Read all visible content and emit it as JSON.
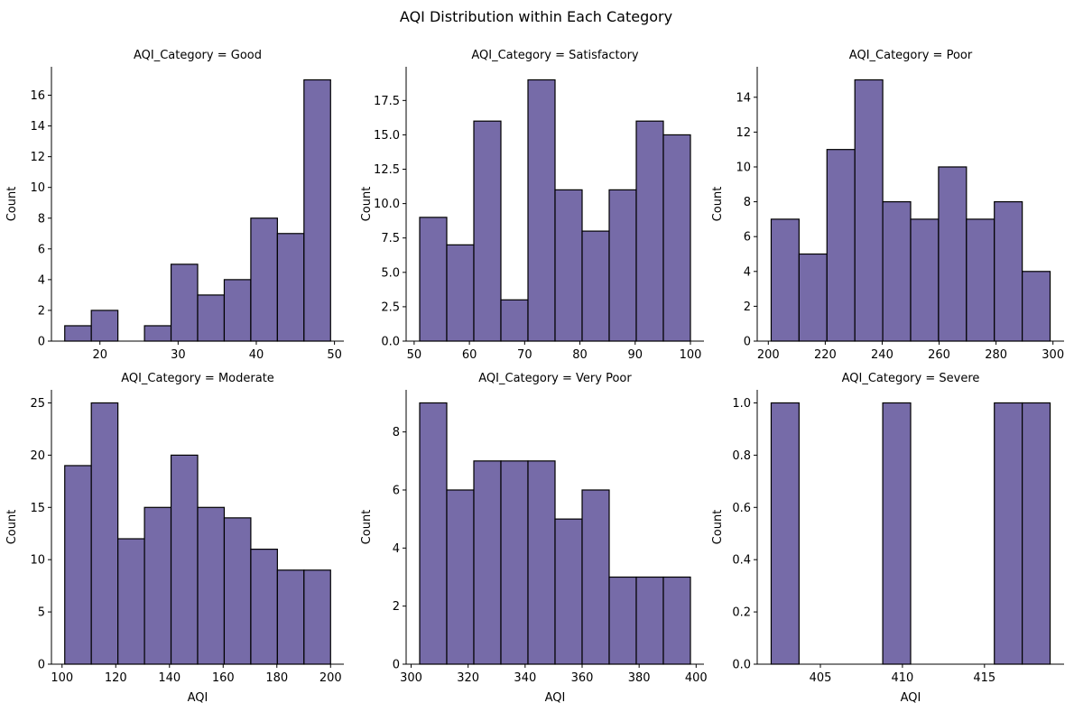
{
  "figure": {
    "title": "AQI Distribution within Each Category",
    "bar_color": "#766BA8",
    "edge_color": "#000000"
  },
  "chart_data": [
    {
      "type": "bar",
      "title": "AQI_Category = Good",
      "xlabel": "",
      "ylabel": "Count",
      "bin_edges": [
        15.5,
        18.9,
        22.3,
        25.7,
        29.1,
        32.5,
        35.9,
        39.3,
        42.7,
        46.1,
        49.5
      ],
      "values": [
        1,
        2,
        0,
        1,
        5,
        3,
        4,
        8,
        7,
        17
      ],
      "xlim": [
        13.8,
        51.2
      ],
      "ylim": [
        0,
        17.85
      ],
      "xticks": [
        20,
        30,
        40,
        50
      ],
      "xtick_labels": [
        "20",
        "30",
        "40",
        "50"
      ],
      "yticks": [
        0,
        2,
        4,
        6,
        8,
        10,
        12,
        14,
        16
      ],
      "ytick_labels": [
        "0",
        "2",
        "4",
        "6",
        "8",
        "10",
        "12",
        "14",
        "16"
      ]
    },
    {
      "type": "bar",
      "title": "AQI_Category = Satisfactory",
      "xlabel": "",
      "ylabel": "Count",
      "bin_edges": [
        51,
        55.9,
        60.8,
        65.7,
        70.6,
        75.5,
        80.4,
        85.3,
        90.2,
        95.1,
        100
      ],
      "values": [
        9,
        7,
        16,
        3,
        19,
        11,
        8,
        11,
        16,
        15
      ],
      "xlim": [
        48.55,
        102.45
      ],
      "ylim": [
        0,
        19.95
      ],
      "xticks": [
        50,
        60,
        70,
        80,
        90,
        100
      ],
      "xtick_labels": [
        "50",
        "60",
        "70",
        "80",
        "90",
        "100"
      ],
      "yticks": [
        0,
        2.5,
        5,
        7.5,
        10,
        12.5,
        15,
        17.5
      ],
      "ytick_labels": [
        "0.0",
        "2.5",
        "5.0",
        "7.5",
        "10.0",
        "12.5",
        "15.0",
        "17.5"
      ]
    },
    {
      "type": "bar",
      "title": "AQI_Category = Poor",
      "xlabel": "",
      "ylabel": "Count",
      "bin_edges": [
        201,
        210.8,
        220.6,
        230.4,
        240.2,
        250,
        259.8,
        269.6,
        279.4,
        289.2,
        299
      ],
      "values": [
        7,
        5,
        11,
        15,
        8,
        7,
        10,
        7,
        8,
        4
      ],
      "xlim": [
        196.1,
        303.9
      ],
      "ylim": [
        0,
        15.75
      ],
      "xticks": [
        200,
        220,
        240,
        260,
        280,
        300
      ],
      "xtick_labels": [
        "200",
        "220",
        "240",
        "260",
        "280",
        "300"
      ],
      "yticks": [
        0,
        2,
        4,
        6,
        8,
        10,
        12,
        14
      ],
      "ytick_labels": [
        "0",
        "2",
        "4",
        "6",
        "8",
        "10",
        "12",
        "14"
      ]
    },
    {
      "type": "bar",
      "title": "AQI_Category = Moderate",
      "xlabel": "AQI",
      "ylabel": "Count",
      "bin_edges": [
        101,
        110.9,
        120.8,
        130.7,
        140.6,
        150.5,
        160.4,
        170.3,
        180.2,
        190.1,
        200
      ],
      "values": [
        19,
        25,
        12,
        15,
        20,
        15,
        14,
        11,
        9,
        9
      ],
      "xlim": [
        96.05,
        204.95
      ],
      "ylim": [
        0,
        26.25
      ],
      "xticks": [
        100,
        120,
        140,
        160,
        180,
        200
      ],
      "xtick_labels": [
        "100",
        "120",
        "140",
        "160",
        "180",
        "200"
      ],
      "yticks": [
        0,
        5,
        10,
        15,
        20,
        25
      ],
      "ytick_labels": [
        "0",
        "5",
        "10",
        "15",
        "20",
        "25"
      ]
    },
    {
      "type": "bar",
      "title": "AQI_Category = Very Poor",
      "xlabel": "AQI",
      "ylabel": "Count",
      "bin_edges": [
        303,
        312.5,
        322,
        331.5,
        341,
        350.5,
        360,
        369.5,
        379,
        388.5,
        398
      ],
      "values": [
        9,
        6,
        7,
        7,
        7,
        5,
        6,
        3,
        3,
        3
      ],
      "xlim": [
        298.25,
        402.75
      ],
      "ylim": [
        0,
        9.45
      ],
      "xticks": [
        300,
        320,
        340,
        360,
        380,
        400
      ],
      "xtick_labels": [
        "300",
        "320",
        "340",
        "360",
        "380",
        "400"
      ],
      "yticks": [
        0,
        2,
        4,
        6,
        8
      ],
      "ytick_labels": [
        "0",
        "2",
        "4",
        "6",
        "8"
      ]
    },
    {
      "type": "bar",
      "title": "AQI_Category = Severe",
      "xlabel": "AQI",
      "ylabel": "Count",
      "bin_edges": [
        402,
        403.7,
        405.4,
        407.1,
        408.8,
        410.5,
        412.2,
        413.9,
        415.6,
        417.3,
        419
      ],
      "values": [
        1,
        0,
        0,
        0,
        1,
        0,
        0,
        0,
        1,
        1
      ],
      "xlim": [
        401.15,
        419.85
      ],
      "ylim": [
        0,
        1.05
      ],
      "xticks": [
        405,
        410,
        415
      ],
      "xtick_labels": [
        "405",
        "410",
        "415"
      ],
      "yticks": [
        0,
        0.2,
        0.4,
        0.6,
        0.8,
        1.0
      ],
      "ytick_labels": [
        "0.0",
        "0.2",
        "0.4",
        "0.6",
        "0.8",
        "1.0"
      ]
    }
  ]
}
